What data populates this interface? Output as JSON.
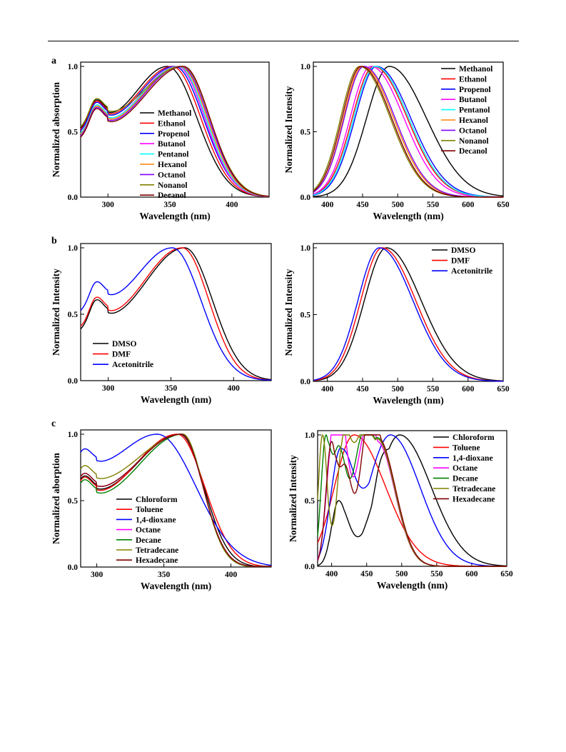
{
  "panel_labels": [
    "a",
    "b",
    "c"
  ],
  "chart_data": [
    {
      "type": "line",
      "kind": "absorption",
      "xlabel": "Wavelength (nm)",
      "ylabel": "Normalized absorption",
      "xlim": [
        278,
        430
      ],
      "ylim": [
        0,
        1.0
      ],
      "xticks": [
        300,
        350,
        400
      ],
      "yticks": [
        0.0,
        0.5,
        1.0
      ],
      "legend_position": "center",
      "series": [
        {
          "name": "Methanol",
          "color": "#000000",
          "min_y": 0.64,
          "peak_x": 348,
          "half_x": 376
        },
        {
          "name": "Ethanol",
          "color": "#ff0000",
          "min_y": 0.63,
          "peak_x": 352,
          "half_x": 379
        },
        {
          "name": "Propenol",
          "color": "#0000ff",
          "min_y": 0.62,
          "peak_x": 354,
          "half_x": 381
        },
        {
          "name": "Butanol",
          "color": "#ff00ff",
          "min_y": 0.6,
          "peak_x": 356,
          "half_x": 382
        },
        {
          "name": "Pentanol",
          "color": "#00ffff",
          "min_y": 0.6,
          "peak_x": 357,
          "half_x": 383
        },
        {
          "name": "Hexanol",
          "color": "#ff8000",
          "min_y": 0.59,
          "peak_x": 358,
          "half_x": 384
        },
        {
          "name": "Octanol",
          "color": "#8000ff",
          "min_y": 0.58,
          "peak_x": 359,
          "half_x": 385
        },
        {
          "name": "Nonanol",
          "color": "#808000",
          "min_y": 0.65,
          "peak_x": 360,
          "half_x": 386
        },
        {
          "name": "Decanol",
          "color": "#800000",
          "min_y": 0.57,
          "peak_x": 361,
          "half_x": 386
        }
      ]
    },
    {
      "type": "line",
      "kind": "emission",
      "xlabel": "Wavelength (nm)",
      "ylabel": "Normalized Intensity",
      "xlim": [
        380,
        650
      ],
      "ylim": [
        0,
        1.0
      ],
      "xticks": [
        400,
        450,
        500,
        550,
        600,
        650
      ],
      "yticks": [
        0.0,
        0.5,
        1.0
      ],
      "legend_position": "top-right",
      "series": [
        {
          "name": "Methanol",
          "color": "#000000",
          "peak_x": 488,
          "hwhm_left": 38,
          "hwhm_right": 62
        },
        {
          "name": "Ethanol",
          "color": "#ff0000",
          "peak_x": 466,
          "hwhm_left": 36,
          "hwhm_right": 56
        },
        {
          "name": "Propenol",
          "color": "#0000ff",
          "peak_x": 470,
          "hwhm_left": 36,
          "hwhm_right": 57
        },
        {
          "name": "Butanol",
          "color": "#ff00ff",
          "peak_x": 462,
          "hwhm_left": 35,
          "hwhm_right": 55
        },
        {
          "name": "Pentanol",
          "color": "#00ffff",
          "peak_x": 468,
          "hwhm_left": 36,
          "hwhm_right": 56
        },
        {
          "name": "Hexanol",
          "color": "#ff8000",
          "peak_x": 450,
          "hwhm_left": 32,
          "hwhm_right": 52
        },
        {
          "name": "Octanol",
          "color": "#8000ff",
          "peak_x": 452,
          "hwhm_left": 33,
          "hwhm_right": 52
        },
        {
          "name": "Nonanol",
          "color": "#808000",
          "peak_x": 446,
          "hwhm_left": 32,
          "hwhm_right": 51
        },
        {
          "name": "Decanol",
          "color": "#800000",
          "peak_x": 448,
          "hwhm_left": 32,
          "hwhm_right": 51
        }
      ]
    },
    {
      "type": "line",
      "kind": "absorption",
      "xlabel": "Wavelength (nm)",
      "ylabel": "Normalized Intensity",
      "xlim": [
        278,
        430
      ],
      "ylim": [
        0,
        1.0
      ],
      "xticks": [
        300,
        350,
        400
      ],
      "yticks": [
        0.0,
        0.5,
        1.0
      ],
      "legend_position": "bottom-left",
      "series": [
        {
          "name": "DMSO",
          "color": "#000000",
          "min_y": 0.5,
          "peak_x": 361,
          "half_x": 387
        },
        {
          "name": "DMF",
          "color": "#ff0000",
          "min_y": 0.52,
          "peak_x": 359,
          "half_x": 384
        },
        {
          "name": "Acetonitrile",
          "color": "#0000ff",
          "min_y": 0.64,
          "peak_x": 351,
          "half_x": 378
        }
      ]
    },
    {
      "type": "line",
      "kind": "emission",
      "xlabel": "Wavelength (nm)",
      "ylabel": "Normalized Intensity",
      "xlim": [
        380,
        650
      ],
      "ylim": [
        0,
        1.0
      ],
      "xticks": [
        400,
        450,
        500,
        550,
        600,
        650
      ],
      "yticks": [
        0.0,
        0.5,
        1.0
      ],
      "legend_position": "top-right",
      "series": [
        {
          "name": "DMSO",
          "color": "#000000",
          "peak_x": 484,
          "hwhm_left": 37,
          "hwhm_right": 58
        },
        {
          "name": "DMF",
          "color": "#ff0000",
          "peak_x": 478,
          "hwhm_left": 36,
          "hwhm_right": 56
        },
        {
          "name": "Acetonitrile",
          "color": "#0000ff",
          "peak_x": 474,
          "hwhm_left": 36,
          "hwhm_right": 56
        }
      ]
    },
    {
      "type": "line",
      "kind": "absorption",
      "xlabel": "Wavelength (nm)",
      "ylabel": "Normalized aborption",
      "xlim": [
        288,
        430
      ],
      "ylim": [
        0,
        1.0
      ],
      "xticks": [
        300,
        350,
        400
      ],
      "yticks": [
        0.0,
        0.5,
        1.0
      ],
      "legend_position": "bottom-right",
      "series": [
        {
          "name": "Chloroform",
          "color": "#000000",
          "min_y": 0.58,
          "peak_x": 362,
          "half_x": 383
        },
        {
          "name": "Toluene",
          "color": "#ff0000",
          "min_y": 0.57,
          "peak_x": 360,
          "half_x": 384
        },
        {
          "name": "1,4-dioxane",
          "color": "#0000ff",
          "min_y": 0.79,
          "peak_x": 345,
          "half_x": 379
        },
        {
          "name": "Octane",
          "color": "#ff00ff",
          "min_y": 0.6,
          "peak_x": 363,
          "half_x": 382
        },
        {
          "name": "Decane",
          "color": "#008000",
          "min_y": 0.55,
          "peak_x": 364,
          "half_x": 382
        },
        {
          "name": "Tetradecane",
          "color": "#808000",
          "min_y": 0.66,
          "peak_x": 364,
          "half_x": 382
        },
        {
          "name": "Hexadecane",
          "color": "#800000",
          "min_y": 0.6,
          "peak_x": 363,
          "half_x": 382
        }
      ]
    },
    {
      "type": "line",
      "kind": "emission",
      "xlabel": "Wavelength (nm)",
      "ylabel": "Normalized Intensity",
      "xlim": [
        380,
        650
      ],
      "ylim": [
        0,
        1.0
      ],
      "xticks": [
        400,
        450,
        500,
        550,
        600,
        650
      ],
      "yticks": [
        0.0,
        0.5,
        1.0
      ],
      "legend_position": "top-right",
      "series": [
        {
          "name": "Chloroform",
          "color": "#000000",
          "peaks": [
            [
              497,
              1.0,
              32,
              45
            ],
            [
              410,
              0.5,
              10,
              14
            ],
            [
              470,
              0.2,
              8,
              10
            ]
          ]
        },
        {
          "name": "Toluene",
          "color": "#ff0000",
          "peaks": [
            [
              432,
              1.0,
              28,
              45
            ]
          ]
        },
        {
          "name": "1,4-dioxane",
          "color": "#0000ff",
          "peaks": [
            [
              484,
              1.0,
              32,
              42
            ],
            [
              413,
              0.9,
              14,
              18
            ]
          ]
        },
        {
          "name": "Octane",
          "color": "#ff00ff",
          "peaks": [
            [
              402,
              1.0,
              9,
              10
            ],
            [
              414,
              0.9,
              8,
              12
            ],
            [
              465,
              0.95,
              20,
              25
            ],
            [
              445,
              0.5,
              10,
              12
            ]
          ]
        },
        {
          "name": "Decane",
          "color": "#008000",
          "peaks": [
            [
              392,
              1.0,
              7,
              8
            ],
            [
              411,
              0.9,
              8,
              10
            ],
            [
              465,
              0.98,
              20,
              25
            ],
            [
              440,
              0.6,
              12,
              12
            ]
          ]
        },
        {
          "name": "Tetradecane",
          "color": "#808000",
          "peaks": [
            [
              387,
              1.0,
              6,
              7
            ],
            [
              417,
              0.98,
              9,
              10
            ],
            [
              465,
              0.97,
              20,
              25
            ],
            [
              440,
              0.6,
              12,
              12
            ]
          ]
        },
        {
          "name": "Hexadecane",
          "color": "#800000",
          "peaks": [
            [
              400,
              0.95,
              8,
              9
            ],
            [
              420,
              0.7,
              8,
              9
            ],
            [
              466,
              0.98,
              20,
              25
            ],
            [
              450,
              0.5,
              10,
              12
            ]
          ]
        }
      ]
    }
  ]
}
